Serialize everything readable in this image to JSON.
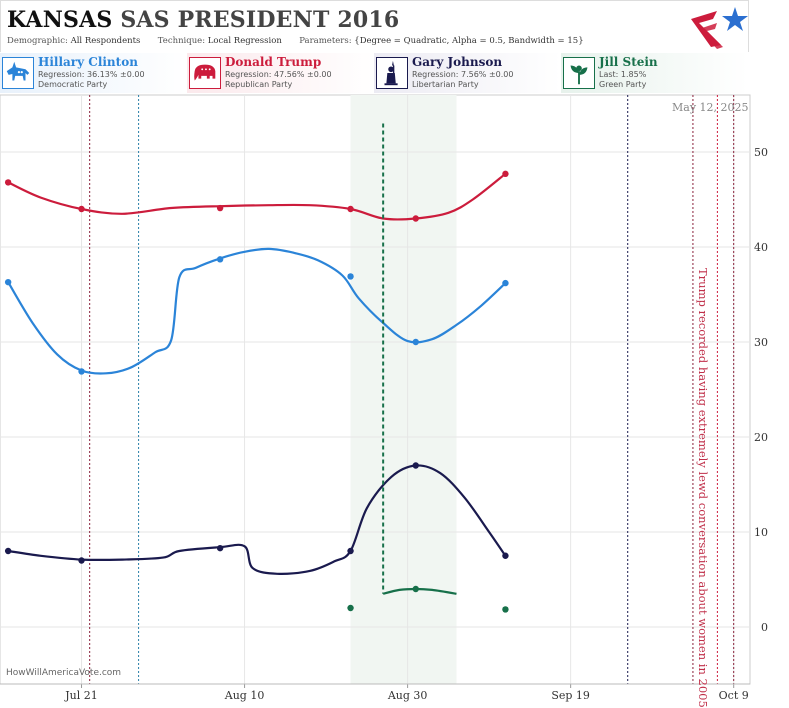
{
  "header": {
    "state": "KANSAS",
    "race": "SAS PRESIDENT 2016",
    "demographic_label": "Demographic:",
    "demographic_value": "All Respondents",
    "technique_label": "Technique:",
    "technique_value": "Local Regression",
    "parameters_label": "Parameters:",
    "parameters_value": "{Degree = Quadratic, Alpha = 0.5, Bandwidth = 15}"
  },
  "candidates": [
    {
      "name": "Hillary Clinton",
      "line2": "Regression: 36.13% ±0.00",
      "line3": "Democratic Party",
      "color": "#2b84d8",
      "bg": "#e8f1fb",
      "icon": "donkey-icon"
    },
    {
      "name": "Donald Trump",
      "line2": "Regression: 47.56% ±0.00",
      "line3": "Republican Party",
      "color": "#cc1c3c",
      "bg": "#fbe9ec",
      "icon": "elephant-icon"
    },
    {
      "name": "Gary Johnson",
      "line2": "Regression: 7.56% ±0.00",
      "line3": "Libertarian Party",
      "color": "#1a1a4e",
      "bg": "#ecebf3",
      "icon": "liberty-statue-icon"
    },
    {
      "name": "Jill Stein",
      "line2": "Last: 1.85%",
      "line3": "Green Party",
      "color": "#17704a",
      "bg": "#e7f2ec",
      "icon": "plant-icon"
    }
  ],
  "watermark": "HowWillAmericaVote.com",
  "date_stamp": "May 12, 2025",
  "annotation": "Trump recorded having extremely lewd conversation about women in 2005",
  "chart_data": {
    "type": "line",
    "x_tick_labels": [
      "Jul 21",
      "Aug 10",
      "Aug 30",
      "Sep 19",
      "Oct 9"
    ],
    "x_ticks": [
      "2016-07-21",
      "2016-08-10",
      "2016-08-30",
      "2016-09-19",
      "2016-10-09"
    ],
    "xlim": [
      "2016-07-11",
      "2016-10-11"
    ],
    "ylim": [
      -6,
      56
    ],
    "y_ticks": [
      0,
      10,
      20,
      30,
      40,
      50
    ],
    "y_axis_side": "right",
    "grid": true,
    "highlight_range": [
      "2016-08-23",
      "2016-09-05"
    ],
    "event_lines": [
      {
        "date": "2016-07-22",
        "color": "#8a1f3a",
        "style": "dotted"
      },
      {
        "date": "2016-07-28",
        "color": "#2b7fa8",
        "style": "dotted"
      },
      {
        "date": "2016-09-26",
        "color": "#1a1a4e",
        "style": "dotted"
      },
      {
        "date": "2016-10-04",
        "color": "#8a1f3a",
        "style": "dotted"
      },
      {
        "date": "2016-10-07",
        "color": "#cc1c3c",
        "style": "dotted"
      },
      {
        "date": "2016-10-09",
        "color": "#8a1f3a",
        "style": "dotted"
      }
    ],
    "series": [
      {
        "name": "Hillary Clinton",
        "color": "#2b84d8",
        "points": [
          [
            "2016-07-12",
            36.3
          ],
          [
            "2016-07-21",
            26.9
          ],
          [
            "2016-08-07",
            38.7
          ],
          [
            "2016-08-23",
            36.9
          ],
          [
            "2016-08-31",
            30.0
          ],
          [
            "2016-09-11",
            36.2
          ]
        ],
        "curve": [
          [
            "2016-07-12",
            36.3
          ],
          [
            "2016-07-15",
            32.0
          ],
          [
            "2016-07-18",
            28.7
          ],
          [
            "2016-07-21",
            27.0
          ],
          [
            "2016-07-24",
            26.7
          ],
          [
            "2016-07-27",
            27.3
          ],
          [
            "2016-07-30",
            28.9
          ],
          [
            "2016-08-01",
            30.2
          ],
          [
            "2016-08-02",
            36.8
          ],
          [
            "2016-08-04",
            37.8
          ],
          [
            "2016-08-07",
            38.8
          ],
          [
            "2016-08-10",
            39.5
          ],
          [
            "2016-08-13",
            39.8
          ],
          [
            "2016-08-16",
            39.4
          ],
          [
            "2016-08-19",
            38.6
          ],
          [
            "2016-08-22",
            37.0
          ],
          [
            "2016-08-24",
            34.6
          ],
          [
            "2016-08-27",
            32.0
          ],
          [
            "2016-08-30",
            30.1
          ],
          [
            "2016-09-02",
            30.3
          ],
          [
            "2016-09-05",
            31.8
          ],
          [
            "2016-09-08",
            33.8
          ],
          [
            "2016-09-11",
            36.2
          ]
        ]
      },
      {
        "name": "Donald Trump",
        "color": "#cc1c3c",
        "points": [
          [
            "2016-07-12",
            46.8
          ],
          [
            "2016-07-21",
            44.0
          ],
          [
            "2016-08-07",
            44.1
          ],
          [
            "2016-08-23",
            44.0
          ],
          [
            "2016-08-31",
            43.0
          ],
          [
            "2016-09-11",
            47.7
          ]
        ],
        "curve": [
          [
            "2016-07-12",
            46.8
          ],
          [
            "2016-07-16",
            45.2
          ],
          [
            "2016-07-21",
            44.0
          ],
          [
            "2016-07-26",
            43.5
          ],
          [
            "2016-08-01",
            44.1
          ],
          [
            "2016-08-07",
            44.3
          ],
          [
            "2016-08-13",
            44.4
          ],
          [
            "2016-08-18",
            44.4
          ],
          [
            "2016-08-23",
            44.0
          ],
          [
            "2016-08-27",
            43.0
          ],
          [
            "2016-08-31",
            43.0
          ],
          [
            "2016-09-04",
            43.6
          ],
          [
            "2016-09-07",
            45.0
          ],
          [
            "2016-09-11",
            47.7
          ]
        ]
      },
      {
        "name": "Gary Johnson",
        "color": "#1a1a4e",
        "points": [
          [
            "2016-07-12",
            8.0
          ],
          [
            "2016-07-21",
            7.0
          ],
          [
            "2016-08-07",
            8.3
          ],
          [
            "2016-08-23",
            8.0
          ],
          [
            "2016-08-31",
            17.0
          ],
          [
            "2016-09-11",
            7.5
          ]
        ],
        "curve": [
          [
            "2016-07-12",
            8.0
          ],
          [
            "2016-07-16",
            7.5
          ],
          [
            "2016-07-21",
            7.1
          ],
          [
            "2016-07-26",
            7.1
          ],
          [
            "2016-07-31",
            7.3
          ],
          [
            "2016-08-02",
            8.0
          ],
          [
            "2016-08-07",
            8.4
          ],
          [
            "2016-08-10",
            8.5
          ],
          [
            "2016-08-11",
            6.2
          ],
          [
            "2016-08-14",
            5.6
          ],
          [
            "2016-08-18",
            5.9
          ],
          [
            "2016-08-21",
            6.9
          ],
          [
            "2016-08-23",
            8.0
          ],
          [
            "2016-08-25",
            12.5
          ],
          [
            "2016-08-28",
            15.8
          ],
          [
            "2016-08-31",
            17.0
          ],
          [
            "2016-09-03",
            16.2
          ],
          [
            "2016-09-06",
            13.6
          ],
          [
            "2016-09-09",
            10.0
          ],
          [
            "2016-09-11",
            7.5
          ]
        ]
      },
      {
        "name": "Jill Stein",
        "color": "#17704a",
        "points": [
          [
            "2016-08-23",
            2.0
          ],
          [
            "2016-08-31",
            4.0
          ],
          [
            "2016-09-11",
            1.85
          ]
        ],
        "curve": [
          [
            "2016-08-27",
            3.5
          ],
          [
            "2016-08-29",
            3.9
          ],
          [
            "2016-08-31",
            4.0
          ],
          [
            "2016-09-02",
            3.9
          ],
          [
            "2016-09-05",
            3.5
          ]
        ],
        "drop_line": {
          "date": "2016-08-27",
          "from": 53,
          "to": 3.5
        }
      }
    ]
  }
}
